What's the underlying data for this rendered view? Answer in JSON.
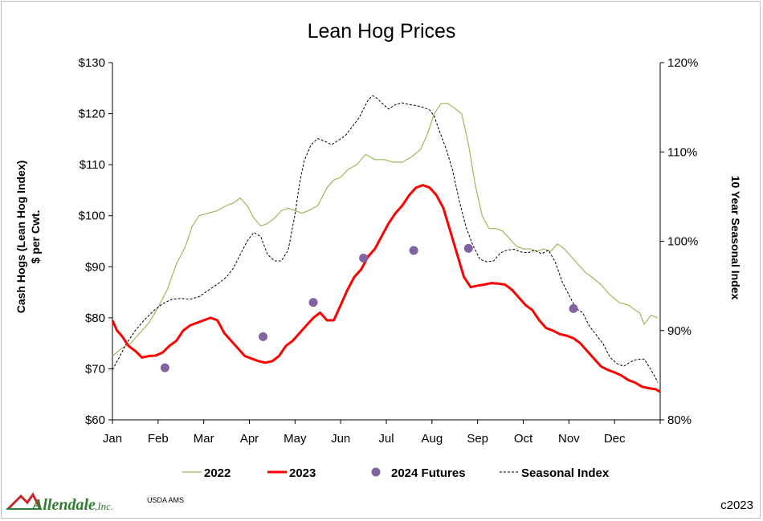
{
  "chart_data": {
    "type": "line",
    "title": "Lean Hog Prices",
    "ylabel_line1": "Cash Hogs (Lean Hog Index)",
    "ylabel_line2": "$ per Cwt.",
    "y2label": "10 Year Seasonal Index",
    "ylim": [
      60,
      130
    ],
    "y2lim": [
      0.8,
      1.2
    ],
    "yticks": [
      "$60",
      "$70",
      "$80",
      "$90",
      "$100",
      "$110",
      "$120",
      "$130"
    ],
    "y2ticks": [
      "80%",
      "90%",
      "100%",
      "110%",
      "120%"
    ],
    "xticks": [
      "Jan",
      "Feb",
      "Mar",
      "Apr",
      "May",
      "Jun",
      "Jul",
      "Aug",
      "Sep",
      "Oct",
      "Nov",
      "Dec"
    ],
    "legend_position": "bottom",
    "colors": {
      "series_2022": "#9bbb59",
      "series_2023": "#ff0000",
      "series_futures": "#8064a2",
      "series_seasonal": "#000000"
    },
    "series": [
      {
        "name": "2022",
        "axis": "left",
        "x": [
          0,
          0.2,
          0.4,
          0.6,
          0.8,
          1.0,
          1.2,
          1.4,
          1.6,
          1.75,
          1.9,
          2.1,
          2.3,
          2.5,
          2.65,
          2.8,
          2.95,
          3.1,
          3.25,
          3.4,
          3.55,
          3.7,
          3.85,
          4.0,
          4.15,
          4.3,
          4.5,
          4.7,
          4.85,
          5.0,
          5.15,
          5.35,
          5.55,
          5.75,
          5.95,
          6.15,
          6.35,
          6.55,
          6.75,
          6.9,
          7.05,
          7.2,
          7.35,
          7.5,
          7.65,
          7.8,
          7.95,
          8.1,
          8.25,
          8.4,
          8.55,
          8.7,
          8.85,
          9.0,
          9.15,
          9.3,
          9.45,
          9.6,
          9.75,
          9.9,
          10.05,
          10.2,
          10.35,
          10.5,
          10.7,
          10.9,
          11.1,
          11.3,
          11.45,
          11.55,
          11.65,
          11.8,
          11.95
        ],
        "y": [
          72.5,
          74,
          75,
          77,
          79,
          82,
          85.5,
          90.5,
          94,
          98,
          100,
          100.5,
          101,
          102,
          102.5,
          103.5,
          102,
          99.5,
          98,
          98.5,
          99.5,
          101,
          101.5,
          101,
          100.5,
          101,
          102,
          105.5,
          107,
          107.5,
          109,
          110,
          112,
          111,
          111,
          110.5,
          110.5,
          111.5,
          113,
          116,
          120,
          122,
          122,
          121,
          120,
          114,
          106,
          100,
          97.5,
          97.5,
          97,
          95.5,
          94,
          93.5,
          93.5,
          93,
          93.5,
          93,
          94.5,
          93.5,
          92,
          90.5,
          89,
          88,
          86.5,
          84.5,
          83,
          82.5,
          81.5,
          81,
          78.7,
          80.5,
          80
        ]
      },
      {
        "name": "2023",
        "axis": "left",
        "x": [
          0,
          0.1,
          0.2,
          0.35,
          0.5,
          0.65,
          0.8,
          0.95,
          1.1,
          1.25,
          1.4,
          1.55,
          1.7,
          1.85,
          2.0,
          2.15,
          2.3,
          2.45,
          2.6,
          2.75,
          2.9,
          3.05,
          3.2,
          3.35,
          3.5,
          3.65,
          3.8,
          3.95,
          4.1,
          4.25,
          4.4,
          4.55,
          4.7,
          4.85,
          5.0,
          5.15,
          5.3,
          5.45,
          5.6,
          5.75,
          5.9,
          6.05,
          6.2,
          6.35,
          6.5,
          6.65,
          6.8,
          6.95,
          7.1,
          7.25,
          7.4,
          7.55,
          7.7,
          7.85,
          8.0,
          8.15,
          8.3,
          8.45,
          8.6,
          8.75,
          8.9,
          9.05,
          9.2,
          9.35,
          9.5,
          9.65,
          9.8,
          9.95,
          10.1,
          10.25,
          10.4,
          10.55,
          10.7,
          10.85,
          11.0,
          11.15,
          11.3,
          11.45,
          11.6,
          11.75,
          11.9,
          12.0
        ],
        "y": [
          79.5,
          77.5,
          76.5,
          74.5,
          73.5,
          72.2,
          72.5,
          72.6,
          73.2,
          74.5,
          75.5,
          77.5,
          78.5,
          79,
          79.5,
          80,
          79.5,
          77,
          75.5,
          74,
          72.5,
          72,
          71.5,
          71.2,
          71.5,
          72.5,
          74.5,
          75.5,
          77,
          78.5,
          80,
          81,
          79.5,
          79.5,
          82.5,
          85.5,
          88,
          89.5,
          92,
          93.5,
          96,
          98.5,
          100.5,
          102,
          104,
          105.5,
          106,
          105.5,
          104,
          101.5,
          97,
          92.5,
          88,
          86,
          86.3,
          86.5,
          86.8,
          86.7,
          86.5,
          85.5,
          84,
          82.5,
          81.5,
          79.5,
          78,
          77.5,
          76.8,
          76.5,
          76,
          75,
          73.5,
          72,
          70.5,
          69.8,
          69.3,
          68.7,
          67.8,
          67.3,
          66.5,
          66.2,
          66,
          65.5
        ]
      },
      {
        "name": "2024 Futures",
        "axis": "left",
        "x": [
          1.15,
          3.3,
          4.4,
          5.5,
          6.6,
          7.8,
          10.1
        ],
        "y": [
          70.2,
          76.3,
          83,
          91.7,
          93.2,
          93.6,
          81.8
        ]
      },
      {
        "name": "Seasonal Index",
        "axis": "right",
        "x": [
          0,
          0.15,
          0.3,
          0.5,
          0.7,
          0.9,
          1.1,
          1.3,
          1.5,
          1.7,
          1.9,
          2.1,
          2.3,
          2.5,
          2.65,
          2.8,
          2.95,
          3.1,
          3.25,
          3.4,
          3.55,
          3.7,
          3.85,
          4.0,
          4.1,
          4.2,
          4.35,
          4.5,
          4.65,
          4.8,
          4.95,
          5.1,
          5.25,
          5.4,
          5.5,
          5.6,
          5.7,
          5.8,
          5.9,
          6.05,
          6.2,
          6.35,
          6.5,
          6.65,
          6.8,
          6.95,
          7.05,
          7.15,
          7.3,
          7.45,
          7.6,
          7.75,
          7.9,
          8.05,
          8.2,
          8.35,
          8.5,
          8.65,
          8.8,
          8.95,
          9.1,
          9.25,
          9.4,
          9.55,
          9.7,
          9.85,
          10.0,
          10.15,
          10.3,
          10.45,
          10.6,
          10.75,
          10.9,
          11.05,
          11.2,
          11.35,
          11.5,
          11.65,
          11.8,
          11.95
        ],
        "y": [
          0.856,
          0.87,
          0.885,
          0.9,
          0.912,
          0.922,
          0.93,
          0.935,
          0.936,
          0.935,
          0.938,
          0.945,
          0.952,
          0.96,
          0.97,
          0.985,
          1.0,
          1.01,
          1.005,
          0.985,
          0.978,
          0.978,
          0.99,
          1.03,
          1.065,
          1.09,
          1.108,
          1.115,
          1.112,
          1.108,
          1.113,
          1.118,
          1.128,
          1.138,
          1.148,
          1.158,
          1.163,
          1.16,
          1.155,
          1.148,
          1.153,
          1.155,
          1.153,
          1.152,
          1.15,
          1.147,
          1.14,
          1.125,
          1.105,
          1.08,
          1.045,
          1.015,
          0.995,
          0.98,
          0.977,
          0.978,
          0.987,
          0.99,
          0.991,
          0.988,
          0.987,
          0.99,
          0.986,
          0.99,
          0.977,
          0.955,
          0.94,
          0.925,
          0.92,
          0.905,
          0.895,
          0.885,
          0.87,
          0.863,
          0.86,
          0.865,
          0.868,
          0.868,
          0.856,
          0.842
        ]
      }
    ]
  },
  "footer": {
    "logo_text": "Allendale",
    "logo_suffix": ",Inc.",
    "source": "USDA AMS",
    "copyright": "c2023"
  }
}
